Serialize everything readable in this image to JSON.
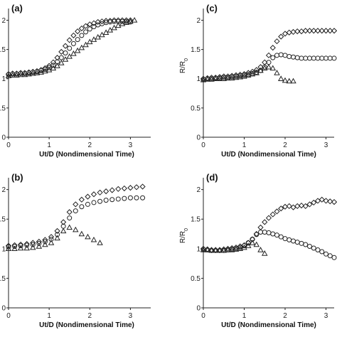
{
  "chart_data": [
    {
      "panel": "(a)",
      "type": "scatter",
      "xlabel": "Ut/D (Nondimensional Time)",
      "ylabel": "",
      "xlim": [
        0,
        3.5
      ],
      "ylim": [
        0,
        2.2
      ],
      "xticks": [
        "0",
        "1",
        "2",
        "3"
      ],
      "yticks": [
        "0",
        "0.5",
        "1",
        "1.5",
        "2"
      ],
      "series": [
        {
          "marker": "diamond",
          "x": [
            0.0,
            0.1,
            0.2,
            0.3,
            0.4,
            0.5,
            0.6,
            0.7,
            0.8,
            0.9,
            1.0,
            1.1,
            1.2,
            1.3,
            1.4,
            1.5,
            1.6,
            1.7,
            1.8,
            1.9,
            2.0,
            2.1,
            2.2,
            2.3,
            2.4,
            2.5,
            2.6,
            2.7,
            2.8,
            2.9,
            3.0
          ],
          "y": [
            1.08,
            1.09,
            1.09,
            1.1,
            1.1,
            1.11,
            1.12,
            1.13,
            1.15,
            1.18,
            1.22,
            1.28,
            1.36,
            1.46,
            1.56,
            1.66,
            1.74,
            1.81,
            1.86,
            1.9,
            1.93,
            1.95,
            1.97,
            1.98,
            1.99,
            1.99,
            2.0,
            2.0,
            2.0,
            2.0,
            2.0
          ]
        },
        {
          "marker": "circle",
          "x": [
            0.0,
            0.1,
            0.2,
            0.3,
            0.4,
            0.5,
            0.6,
            0.7,
            0.8,
            0.9,
            1.0,
            1.1,
            1.2,
            1.3,
            1.4,
            1.5,
            1.6,
            1.7,
            1.8,
            1.9,
            2.0,
            2.1,
            2.2,
            2.3,
            2.4,
            2.5,
            2.6,
            2.7,
            2.8,
            2.9,
            3.0
          ],
          "y": [
            1.07,
            1.08,
            1.08,
            1.09,
            1.09,
            1.1,
            1.11,
            1.12,
            1.14,
            1.16,
            1.19,
            1.23,
            1.29,
            1.36,
            1.44,
            1.52,
            1.6,
            1.67,
            1.74,
            1.8,
            1.85,
            1.89,
            1.92,
            1.94,
            1.96,
            1.97,
            1.98,
            1.98,
            1.98,
            1.98,
            1.97
          ]
        },
        {
          "marker": "triangle",
          "x": [
            0.0,
            0.1,
            0.2,
            0.3,
            0.4,
            0.5,
            0.6,
            0.7,
            0.8,
            0.9,
            1.0,
            1.1,
            1.2,
            1.3,
            1.4,
            1.5,
            1.6,
            1.7,
            1.8,
            1.9,
            2.0,
            2.1,
            2.2,
            2.3,
            2.4,
            2.5,
            2.6,
            2.7,
            2.8,
            2.9,
            3.0,
            3.1
          ],
          "y": [
            1.05,
            1.06,
            1.06,
            1.07,
            1.07,
            1.08,
            1.09,
            1.1,
            1.11,
            1.13,
            1.15,
            1.18,
            1.22,
            1.27,
            1.33,
            1.38,
            1.43,
            1.48,
            1.53,
            1.58,
            1.63,
            1.67,
            1.71,
            1.75,
            1.79,
            1.83,
            1.87,
            1.91,
            1.94,
            1.96,
            1.98,
            2.0
          ]
        }
      ]
    },
    {
      "panel": "(c)",
      "type": "scatter",
      "xlabel": "Ut/D (Nondimensional Time)",
      "ylabel": "R/R0",
      "xlim": [
        0,
        3.2
      ],
      "ylim": [
        0,
        2.2
      ],
      "xticks": [
        "0",
        "1",
        "2",
        "3"
      ],
      "yticks": [
        "0",
        "0.5",
        "1",
        "1.5",
        "2"
      ],
      "series": [
        {
          "marker": "diamond",
          "x": [
            0.0,
            0.1,
            0.2,
            0.3,
            0.4,
            0.5,
            0.6,
            0.7,
            0.8,
            0.9,
            1.0,
            1.1,
            1.2,
            1.3,
            1.4,
            1.5,
            1.6,
            1.7,
            1.8,
            1.9,
            2.0,
            2.1,
            2.2,
            2.3,
            2.4,
            2.5,
            2.6,
            2.7,
            2.8,
            2.9,
            3.0,
            3.1,
            3.2
          ],
          "y": [
            1.0,
            1.01,
            1.02,
            1.02,
            1.03,
            1.04,
            1.04,
            1.05,
            1.06,
            1.07,
            1.08,
            1.1,
            1.12,
            1.15,
            1.2,
            1.28,
            1.4,
            1.53,
            1.64,
            1.72,
            1.77,
            1.79,
            1.8,
            1.81,
            1.81,
            1.82,
            1.82,
            1.82,
            1.82,
            1.82,
            1.82,
            1.82,
            1.82
          ]
        },
        {
          "marker": "circle",
          "x": [
            0.0,
            0.1,
            0.2,
            0.3,
            0.4,
            0.5,
            0.6,
            0.7,
            0.8,
            0.9,
            1.0,
            1.1,
            1.2,
            1.3,
            1.4,
            1.5,
            1.6,
            1.7,
            1.8,
            1.9,
            2.0,
            2.1,
            2.2,
            2.3,
            2.4,
            2.5,
            2.6,
            2.7,
            2.8,
            2.9,
            3.0,
            3.1,
            3.2
          ],
          "y": [
            0.99,
            1.0,
            1.0,
            1.01,
            1.01,
            1.02,
            1.02,
            1.03,
            1.04,
            1.05,
            1.06,
            1.07,
            1.09,
            1.11,
            1.14,
            1.2,
            1.28,
            1.36,
            1.4,
            1.41,
            1.4,
            1.38,
            1.37,
            1.36,
            1.35,
            1.35,
            1.35,
            1.35,
            1.35,
            1.35,
            1.35,
            1.35,
            1.35
          ]
        },
        {
          "marker": "triangle",
          "x": [
            0.0,
            0.1,
            0.2,
            0.3,
            0.4,
            0.5,
            0.6,
            0.7,
            0.8,
            0.9,
            1.0,
            1.1,
            1.2,
            1.3,
            1.4,
            1.5,
            1.6,
            1.7,
            1.8,
            1.9,
            2.0,
            2.1,
            2.2
          ],
          "y": [
            0.98,
            0.99,
            0.99,
            1.0,
            1.0,
            1.0,
            1.01,
            1.01,
            1.02,
            1.03,
            1.04,
            1.06,
            1.08,
            1.1,
            1.14,
            1.18,
            1.2,
            1.18,
            1.1,
            1.0,
            0.97,
            0.96,
            0.96
          ]
        }
      ]
    },
    {
      "panel": "(b)",
      "type": "scatter",
      "xlabel": "Ut/D (Nondimensional Time)",
      "ylabel": "",
      "xlim": [
        0,
        3.5
      ],
      "ylim": [
        0,
        2.2
      ],
      "xticks": [
        "0",
        "1",
        "2",
        "3"
      ],
      "yticks": [
        "0",
        "0.5",
        "1",
        "1.5",
        "2"
      ],
      "series": [
        {
          "marker": "diamond",
          "x": [
            0.0,
            0.15,
            0.3,
            0.45,
            0.6,
            0.75,
            0.9,
            1.05,
            1.2,
            1.35,
            1.5,
            1.65,
            1.8,
            1.95,
            2.1,
            2.25,
            2.4,
            2.55,
            2.7,
            2.85,
            3.0,
            3.15,
            3.3
          ],
          "y": [
            1.05,
            1.06,
            1.07,
            1.08,
            1.1,
            1.12,
            1.15,
            1.2,
            1.3,
            1.45,
            1.62,
            1.75,
            1.83,
            1.88,
            1.92,
            1.95,
            1.97,
            1.99,
            2.01,
            2.02,
            2.03,
            2.04,
            2.05
          ]
        },
        {
          "marker": "circle",
          "x": [
            0.0,
            0.15,
            0.3,
            0.45,
            0.6,
            0.75,
            0.9,
            1.05,
            1.2,
            1.35,
            1.5,
            1.65,
            1.8,
            1.95,
            2.1,
            2.25,
            2.4,
            2.55,
            2.7,
            2.85,
            3.0,
            3.15,
            3.3
          ],
          "y": [
            1.03,
            1.04,
            1.05,
            1.06,
            1.07,
            1.09,
            1.12,
            1.16,
            1.24,
            1.38,
            1.52,
            1.64,
            1.71,
            1.75,
            1.78,
            1.8,
            1.82,
            1.83,
            1.84,
            1.85,
            1.86,
            1.86,
            1.86
          ]
        },
        {
          "marker": "triangle",
          "x": [
            0.0,
            0.15,
            0.3,
            0.45,
            0.6,
            0.75,
            0.9,
            1.05,
            1.2,
            1.35,
            1.5,
            1.65,
            1.8,
            1.95,
            2.1,
            2.25
          ],
          "y": [
            1.0,
            1.0,
            1.01,
            1.01,
            1.02,
            1.04,
            1.07,
            1.1,
            1.18,
            1.3,
            1.36,
            1.32,
            1.25,
            1.2,
            1.15,
            1.1
          ]
        }
      ]
    },
    {
      "panel": "(d)",
      "type": "scatter",
      "xlabel": "Ut/D (Nondimensional Time)",
      "ylabel": "R/R0",
      "xlim": [
        0,
        3.2
      ],
      "ylim": [
        0,
        2.2
      ],
      "xticks": [
        "0",
        "1",
        "2",
        "3"
      ],
      "yticks": [
        "0",
        "0.5",
        "1",
        "1.5",
        "2"
      ],
      "series": [
        {
          "marker": "diamond",
          "x": [
            0.0,
            0.1,
            0.2,
            0.3,
            0.4,
            0.5,
            0.6,
            0.7,
            0.8,
            0.9,
            1.0,
            1.1,
            1.2,
            1.3,
            1.4,
            1.5,
            1.6,
            1.7,
            1.8,
            1.9,
            2.0,
            2.1,
            2.2,
            2.3,
            2.4,
            2.5,
            2.6,
            2.7,
            2.8,
            2.9,
            3.0,
            3.1,
            3.2
          ],
          "y": [
            1.0,
            0.99,
            0.98,
            0.98,
            0.98,
            0.99,
            1.0,
            1.01,
            1.02,
            1.04,
            1.06,
            1.1,
            1.16,
            1.25,
            1.36,
            1.45,
            1.52,
            1.58,
            1.63,
            1.68,
            1.71,
            1.72,
            1.7,
            1.72,
            1.73,
            1.72,
            1.75,
            1.78,
            1.81,
            1.83,
            1.81,
            1.8,
            1.79
          ]
        },
        {
          "marker": "circle",
          "x": [
            0.0,
            0.1,
            0.2,
            0.3,
            0.4,
            0.5,
            0.6,
            0.7,
            0.8,
            0.9,
            1.0,
            1.1,
            1.2,
            1.3,
            1.4,
            1.5,
            1.6,
            1.7,
            1.8,
            1.9,
            2.0,
            2.1,
            2.2,
            2.3,
            2.4,
            2.5,
            2.6,
            2.7,
            2.8,
            2.9,
            3.0,
            3.1,
            3.2
          ],
          "y": [
            0.99,
            0.98,
            0.97,
            0.97,
            0.97,
            0.97,
            0.98,
            0.99,
            1.0,
            1.02,
            1.05,
            1.1,
            1.16,
            1.24,
            1.28,
            1.28,
            1.27,
            1.25,
            1.23,
            1.2,
            1.17,
            1.15,
            1.13,
            1.11,
            1.09,
            1.07,
            1.04,
            1.01,
            0.98,
            0.95,
            0.91,
            0.88,
            0.85
          ]
        },
        {
          "marker": "triangle",
          "x": [
            0.0,
            0.1,
            0.2,
            0.3,
            0.4,
            0.5,
            0.6,
            0.7,
            0.8,
            0.9,
            1.0,
            1.1,
            1.2,
            1.3,
            1.4,
            1.5
          ],
          "y": [
            0.98,
            0.98,
            0.97,
            0.97,
            0.97,
            0.97,
            0.98,
            0.98,
            0.99,
            1.0,
            1.02,
            1.05,
            1.1,
            1.07,
            0.98,
            0.92
          ]
        }
      ]
    }
  ],
  "panels_layout": {
    "a_label": "(a)",
    "b_label": "(b)",
    "c_label": "(c)",
    "d_label": "(d)",
    "xlabel": "Ut/D (Nondimensional Time)",
    "ylabel_main": "R/R",
    "ylabel_sub": "0"
  }
}
